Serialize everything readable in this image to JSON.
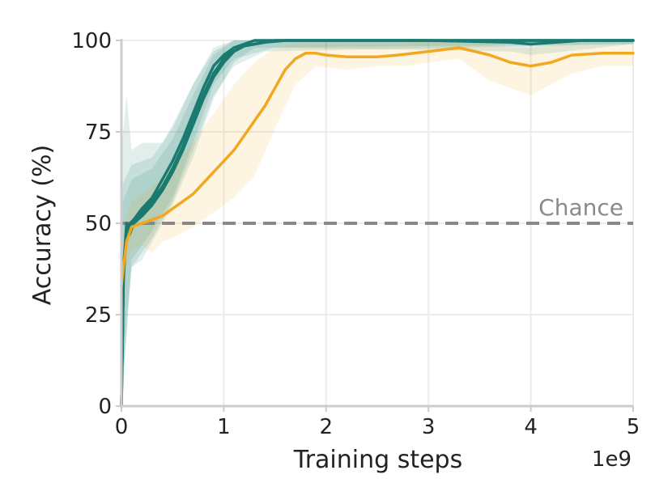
{
  "chart_data": {
    "type": "line",
    "title": "",
    "xlabel": "Training steps",
    "ylabel": "Accuracy (%)",
    "x_offset_label": "1e9",
    "xlim": [
      0,
      5
    ],
    "ylim": [
      0,
      100
    ],
    "xticks": [
      "0",
      "1",
      "2",
      "3",
      "4",
      "5"
    ],
    "yticks": [
      "0",
      "25",
      "50",
      "75",
      "100"
    ],
    "grid": true,
    "legend": "none",
    "annotations": [
      {
        "text": "Chance",
        "y": 50
      }
    ],
    "reference_line": {
      "y": 50,
      "style": "dashed",
      "color": "#888888"
    },
    "colors": {
      "teal": "#1a7a70",
      "orange": "#f0a820",
      "chance": "#888888"
    },
    "series": [
      {
        "color": "#1a7a70",
        "points": [
          [
            0,
            0
          ],
          [
            0.02,
            35
          ],
          [
            0.05,
            50
          ],
          [
            0.08,
            47
          ],
          [
            0.12,
            50
          ],
          [
            0.2,
            53
          ],
          [
            0.3,
            56
          ],
          [
            0.4,
            60
          ],
          [
            0.5,
            65
          ],
          [
            0.6,
            71
          ],
          [
            0.7,
            78
          ],
          [
            0.8,
            85
          ],
          [
            0.9,
            91
          ],
          [
            1.0,
            95
          ],
          [
            1.1,
            98
          ],
          [
            1.2,
            99
          ],
          [
            1.3,
            100
          ],
          [
            1.5,
            100
          ],
          [
            2.0,
            100
          ],
          [
            3.0,
            100
          ],
          [
            5.0,
            100
          ]
        ],
        "band": [
          [
            0,
            0,
            70
          ],
          [
            0.05,
            25,
            85
          ],
          [
            0.1,
            38,
            70
          ],
          [
            0.2,
            40,
            72
          ],
          [
            0.4,
            50,
            72
          ],
          [
            0.5,
            55,
            77
          ],
          [
            0.7,
            68,
            88
          ],
          [
            0.9,
            84,
            97
          ],
          [
            1.1,
            94,
            100
          ],
          [
            1.3,
            98,
            100
          ],
          [
            5.0,
            99,
            100
          ]
        ]
      },
      {
        "color": "#1a7a70",
        "points": [
          [
            0,
            0
          ],
          [
            0.02,
            38
          ],
          [
            0.05,
            49
          ],
          [
            0.12,
            51
          ],
          [
            0.2,
            54
          ],
          [
            0.3,
            57
          ],
          [
            0.4,
            62
          ],
          [
            0.5,
            67
          ],
          [
            0.6,
            73
          ],
          [
            0.7,
            80
          ],
          [
            0.8,
            87
          ],
          [
            0.9,
            93
          ],
          [
            1.0,
            96
          ],
          [
            1.1,
            98
          ],
          [
            1.3,
            99
          ],
          [
            1.5,
            100
          ],
          [
            2.0,
            100
          ],
          [
            3.0,
            100
          ],
          [
            3.8,
            99.5
          ],
          [
            4.0,
            99
          ],
          [
            4.5,
            100
          ],
          [
            5.0,
            100
          ]
        ],
        "band": [
          [
            0,
            0,
            60
          ],
          [
            0.1,
            40,
            66
          ],
          [
            0.3,
            48,
            68
          ],
          [
            0.5,
            57,
            76
          ],
          [
            0.7,
            72,
            88
          ],
          [
            0.9,
            88,
            98
          ],
          [
            1.1,
            95,
            100
          ],
          [
            1.5,
            98,
            100
          ],
          [
            3.8,
            97,
            100
          ],
          [
            4.0,
            96,
            100
          ],
          [
            5.0,
            99,
            100
          ]
        ]
      },
      {
        "color": "#1a7a70",
        "points": [
          [
            0,
            0
          ],
          [
            0.02,
            36
          ],
          [
            0.05,
            48
          ],
          [
            0.12,
            50
          ],
          [
            0.2,
            52
          ],
          [
            0.3,
            55
          ],
          [
            0.4,
            59
          ],
          [
            0.5,
            64
          ],
          [
            0.6,
            70
          ],
          [
            0.7,
            77
          ],
          [
            0.8,
            84
          ],
          [
            0.9,
            90
          ],
          [
            1.0,
            94
          ],
          [
            1.1,
            97
          ],
          [
            1.2,
            98.5
          ],
          [
            1.4,
            99.5
          ],
          [
            1.6,
            100
          ],
          [
            5.0,
            100
          ]
        ],
        "band": [
          [
            0,
            0,
            55
          ],
          [
            0.1,
            38,
            62
          ],
          [
            0.3,
            46,
            65
          ],
          [
            0.5,
            56,
            73
          ],
          [
            0.7,
            70,
            85
          ],
          [
            0.9,
            85,
            96
          ],
          [
            1.1,
            93,
            100
          ],
          [
            1.4,
            97,
            100
          ],
          [
            5.0,
            99,
            100
          ]
        ]
      },
      {
        "color": "#f0a820",
        "points": [
          [
            0,
            33
          ],
          [
            0.02,
            38
          ],
          [
            0.05,
            45
          ],
          [
            0.1,
            49
          ],
          [
            0.2,
            50
          ],
          [
            0.3,
            51
          ],
          [
            0.4,
            52
          ],
          [
            0.5,
            54
          ],
          [
            0.6,
            56
          ],
          [
            0.7,
            58
          ],
          [
            0.8,
            61
          ],
          [
            0.9,
            64
          ],
          [
            1.0,
            67
          ],
          [
            1.1,
            70
          ],
          [
            1.2,
            74
          ],
          [
            1.3,
            78
          ],
          [
            1.4,
            82
          ],
          [
            1.5,
            87
          ],
          [
            1.6,
            92
          ],
          [
            1.7,
            95
          ],
          [
            1.8,
            96.5
          ],
          [
            1.9,
            96.5
          ],
          [
            2.0,
            96
          ],
          [
            2.2,
            95.5
          ],
          [
            2.5,
            95.5
          ],
          [
            2.7,
            96
          ],
          [
            3.0,
            97
          ],
          [
            3.3,
            98
          ],
          [
            3.6,
            96
          ],
          [
            3.8,
            94
          ],
          [
            4.0,
            93
          ],
          [
            4.2,
            94
          ],
          [
            4.4,
            96
          ],
          [
            4.7,
            96.5
          ],
          [
            5.0,
            96.5
          ]
        ],
        "band": [
          [
            0,
            25,
            40
          ],
          [
            0.05,
            38,
            52
          ],
          [
            0.1,
            43,
            56
          ],
          [
            0.2,
            44,
            58
          ],
          [
            0.3,
            42,
            60
          ],
          [
            0.4,
            45,
            62
          ],
          [
            0.5,
            46,
            66
          ],
          [
            0.7,
            49,
            72
          ],
          [
            0.9,
            53,
            80
          ],
          [
            1.1,
            57,
            88
          ],
          [
            1.3,
            63,
            94
          ],
          [
            1.5,
            76,
            98
          ],
          [
            1.7,
            88,
            99
          ],
          [
            1.9,
            93,
            99
          ],
          [
            2.2,
            92,
            99
          ],
          [
            2.5,
            93,
            99
          ],
          [
            2.8,
            93,
            99.5
          ],
          [
            3.0,
            94,
            99.8
          ],
          [
            3.3,
            95,
            99.5
          ],
          [
            3.6,
            89,
            99
          ],
          [
            3.8,
            87,
            98
          ],
          [
            4.0,
            85,
            98
          ],
          [
            4.2,
            88,
            99
          ],
          [
            4.4,
            91,
            99
          ],
          [
            4.7,
            93,
            99
          ],
          [
            5.0,
            93,
            99
          ]
        ]
      }
    ]
  }
}
